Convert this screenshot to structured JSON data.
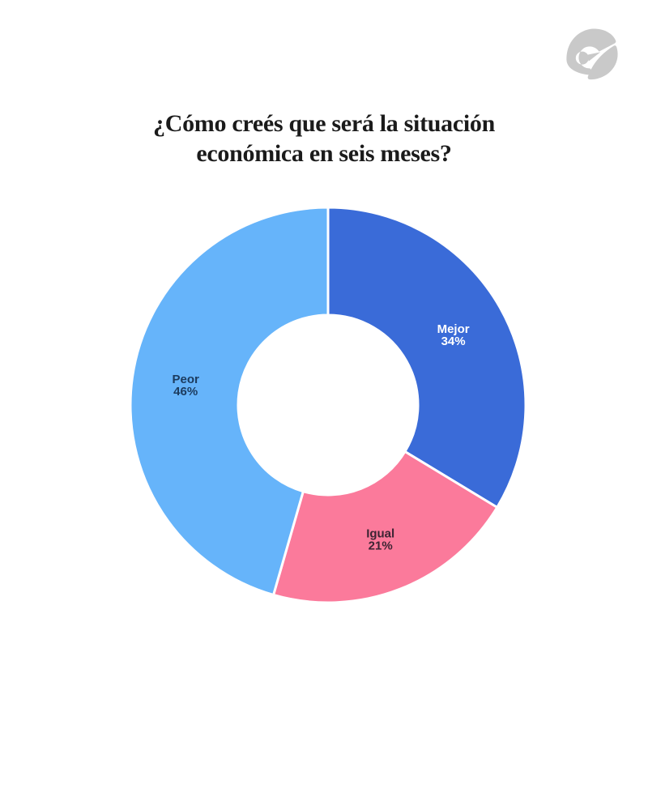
{
  "page": {
    "background_color": "#ffffff"
  },
  "header": {
    "logo_name": "brand-swirl-logo",
    "logo_color": "#c9c9c9"
  },
  "title": {
    "line1": "¿Cómo creés que será la situación",
    "line2": "económica en seis meses?",
    "color": "#1b1b1b"
  },
  "chart_data": {
    "type": "pie",
    "subtype": "donut",
    "title": "¿Cómo creés que será la situación económica en seis meses?",
    "labels": [
      "Mejor",
      "Igual",
      "Peor"
    ],
    "values": [
      34,
      21,
      46
    ],
    "value_unit": "%",
    "slice_colors": [
      "#3a6bd8",
      "#fb7a9b",
      "#66b4fa"
    ],
    "label_text_colors": [
      "#ffffff",
      "#3d2433",
      "#1c3b5e"
    ],
    "start_angle_deg": 0,
    "direction": "clockwise",
    "hole_ratio": 0.455,
    "separator_color": "#ffffff",
    "legend": "none"
  }
}
